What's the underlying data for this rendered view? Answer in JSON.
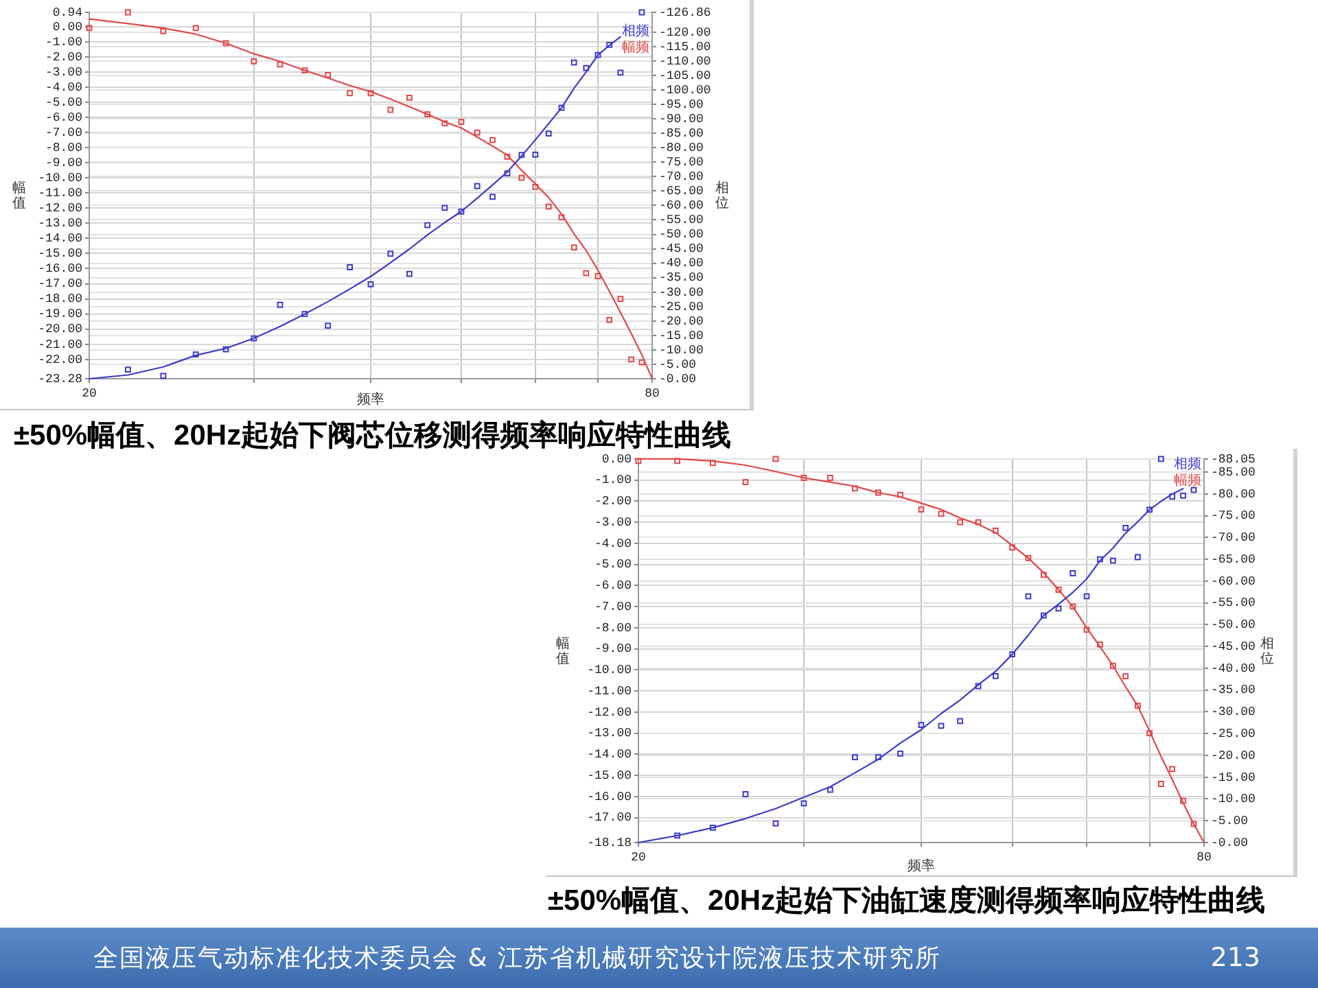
{
  "chart_data": [
    {
      "type": "scatter",
      "title": "±50%幅值、20Hz起始下阀芯位移测得频率响应特性曲线",
      "xlabel": "频率",
      "ylabel": "幅值",
      "y2label": "相位",
      "log": "x",
      "grid": true,
      "legend": "top right",
      "xlim": [
        20,
        80
      ],
      "xticks": [
        {
          "value": 20,
          "label": "20"
        },
        {
          "value": 30,
          "label": null
        },
        {
          "value": 40,
          "label": null
        },
        {
          "value": 50,
          "label": null
        },
        {
          "value": 60,
          "label": null
        },
        {
          "value": 70,
          "label": null
        },
        {
          "value": 80,
          "label": "80"
        }
      ],
      "ylim": [
        -23.28,
        0.94
      ],
      "yticks": [
        {
          "value": 0.94,
          "label": "0.94"
        },
        {
          "value": 0,
          "label": "0.00"
        },
        {
          "value": -1,
          "label": "-1.00"
        },
        {
          "value": -2,
          "label": "-2.00"
        },
        {
          "value": -3,
          "label": "-3.00"
        },
        {
          "value": -4,
          "label": "-4.00"
        },
        {
          "value": -5,
          "label": "-5.00"
        },
        {
          "value": -6,
          "label": "-6.00"
        },
        {
          "value": -7,
          "label": "-7.00"
        },
        {
          "value": -8,
          "label": "-8.00"
        },
        {
          "value": -9,
          "label": "-9.00"
        },
        {
          "value": -10,
          "label": "-10.00"
        },
        {
          "value": -11,
          "label": "-11.00"
        },
        {
          "value": -12,
          "label": "-12.00"
        },
        {
          "value": -13,
          "label": "-13.00"
        },
        {
          "value": -14,
          "label": "-14.00"
        },
        {
          "value": -15,
          "label": "-15.00"
        },
        {
          "value": -16,
          "label": "-16.00"
        },
        {
          "value": -17,
          "label": "-17.00"
        },
        {
          "value": -18,
          "label": "-18.00"
        },
        {
          "value": -19,
          "label": "-19.00"
        },
        {
          "value": -20,
          "label": "-20.00"
        },
        {
          "value": -21,
          "label": "-21.00"
        },
        {
          "value": -22,
          "label": "-22.00"
        },
        {
          "value": -23.28,
          "label": "-23.28"
        }
      ],
      "y2lim": [
        0,
        -126.86
      ],
      "y2ticks": [
        {
          "value": -126.86,
          "label": "-126.86"
        },
        {
          "value": -120,
          "label": "-120.00"
        },
        {
          "value": -115,
          "label": "-115.00"
        },
        {
          "value": -110,
          "label": "-110.00"
        },
        {
          "value": -105,
          "label": "-105.00"
        },
        {
          "value": -100,
          "label": "-100.00"
        },
        {
          "value": -95,
          "label": "-95.00"
        },
        {
          "value": -90,
          "label": "-90.00"
        },
        {
          "value": -85,
          "label": "-85.00"
        },
        {
          "value": -80,
          "label": "-80.00"
        },
        {
          "value": -75,
          "label": "-75.00"
        },
        {
          "value": -70,
          "label": "-70.00"
        },
        {
          "value": -65,
          "label": "-65.00"
        },
        {
          "value": -60,
          "label": "-60.00"
        },
        {
          "value": -55,
          "label": "-55.00"
        },
        {
          "value": -50,
          "label": "-50.00"
        },
        {
          "value": -45,
          "label": "-45.00"
        },
        {
          "value": -40,
          "label": "-40.00"
        },
        {
          "value": -35,
          "label": "-35.00"
        },
        {
          "value": -30,
          "label": "-30.00"
        },
        {
          "value": -25,
          "label": "-25.00"
        },
        {
          "value": -20,
          "label": "-20.00"
        },
        {
          "value": -15,
          "label": "-15.00"
        },
        {
          "value": -10,
          "label": "-10.00"
        },
        {
          "value": -5,
          "label": "-5.00"
        },
        {
          "value": 0,
          "label": "-0.00"
        }
      ],
      "series": [
        {
          "name": "相频",
          "type": "line",
          "axis": "y2",
          "color": "#3c3cc8",
          "x": [
            20,
            22,
            24,
            26,
            28,
            30,
            32,
            34,
            36,
            38,
            40,
            42,
            44,
            46,
            48,
            50,
            52,
            54,
            56,
            58,
            60,
            62,
            64,
            66,
            68,
            70,
            72,
            74
          ],
          "values": [
            0,
            -1.3,
            -4.1,
            -8.1,
            -10.5,
            -14.0,
            -18.1,
            -22.4,
            -26.7,
            -31.1,
            -35.4,
            -40.2,
            -44.9,
            -49.8,
            -54.1,
            -57.9,
            -62.5,
            -67.1,
            -71.6,
            -77.1,
            -82.7,
            -88.3,
            -93.8,
            -100.6,
            -106.2,
            -112.1,
            -115.4,
            -118.4
          ]
        },
        {
          "axis": "y2",
          "color": "#3c3cc8",
          "marker": "square",
          "x": [
            22,
            24,
            26,
            28,
            30,
            32,
            34,
            36,
            38,
            40,
            42,
            44,
            46,
            48,
            50,
            52,
            54,
            56,
            58,
            60,
            62,
            64,
            66,
            68,
            70,
            72,
            74,
            78
          ],
          "values": [
            -3.2,
            -1.0,
            -8.4,
            -10.2,
            -14.0,
            -25.6,
            -22.4,
            -18.4,
            -38.6,
            -32.7,
            -43.3,
            -36.3,
            -53.2,
            -59.2,
            -57.9,
            -66.7,
            -63.0,
            -71.1,
            -77.5,
            -77.6,
            -84.9,
            -93.8,
            -109.5,
            -107.6,
            -112.1,
            -115.6,
            -106.0,
            -126.86
          ]
        },
        {
          "name": "幅频",
          "type": "line",
          "color": "#e04848",
          "x": [
            20,
            22,
            24,
            26,
            28,
            30,
            32,
            34,
            36,
            38,
            40,
            42,
            44,
            46,
            48,
            50,
            52,
            54,
            56,
            58,
            60,
            62,
            64,
            66,
            68,
            70,
            72,
            74,
            76,
            78,
            80
          ],
          "values": [
            0.5,
            0.2,
            -0.1,
            -0.5,
            -1.1,
            -1.8,
            -2.3,
            -2.9,
            -3.4,
            -3.9,
            -4.3,
            -4.8,
            -5.3,
            -5.8,
            -6.3,
            -6.7,
            -7.3,
            -7.9,
            -8.5,
            -9.5,
            -10.4,
            -11.3,
            -12.4,
            -13.7,
            -14.8,
            -16.1,
            -17.5,
            -18.9,
            -20.3,
            -21.7,
            -23.28
          ]
        },
        {
          "color": "#e04848",
          "marker": "square",
          "x": [
            20,
            22,
            24,
            26,
            28,
            30,
            32,
            34,
            36,
            38,
            40,
            42,
            44,
            46,
            48,
            50,
            52,
            54,
            56,
            58,
            60,
            62,
            64,
            66,
            68,
            70,
            72,
            74,
            76,
            78
          ],
          "values": [
            -0.1,
            0.94,
            -0.3,
            -0.1,
            -1.1,
            -2.3,
            -2.5,
            -2.9,
            -3.2,
            -4.4,
            -4.4,
            -5.5,
            -4.7,
            -5.8,
            -6.4,
            -6.3,
            -7.0,
            -7.5,
            -8.6,
            -10.0,
            -10.6,
            -11.9,
            -12.6,
            -14.6,
            -16.3,
            -16.5,
            -19.4,
            -18.0,
            -22.0,
            -22.2
          ]
        }
      ]
    },
    {
      "type": "scatter",
      "title": "±50%幅值、20Hz起始下油缸速度测得频率响应特性曲线",
      "xlabel": "频率",
      "ylabel": "幅值",
      "y2label": "相位",
      "log": "x",
      "grid": true,
      "legend": "top right",
      "xlim": [
        20,
        80
      ],
      "xticks": [
        {
          "value": 20,
          "label": "20"
        },
        {
          "value": 30,
          "label": null
        },
        {
          "value": 40,
          "label": null
        },
        {
          "value": 50,
          "label": null
        },
        {
          "value": 60,
          "label": null
        },
        {
          "value": 70,
          "label": null
        },
        {
          "value": 80,
          "label": "80"
        }
      ],
      "ylim": [
        -18.18,
        0
      ],
      "yticks": [
        {
          "value": 0,
          "label": "0.00"
        },
        {
          "value": -1,
          "label": "-1.00"
        },
        {
          "value": -2,
          "label": "-2.00"
        },
        {
          "value": -3,
          "label": "-3.00"
        },
        {
          "value": -4,
          "label": "-4.00"
        },
        {
          "value": -5,
          "label": "-5.00"
        },
        {
          "value": -6,
          "label": "-6.00"
        },
        {
          "value": -7,
          "label": "-7.00"
        },
        {
          "value": -8,
          "label": "-8.00"
        },
        {
          "value": -9,
          "label": "-9.00"
        },
        {
          "value": -10,
          "label": "-10.00"
        },
        {
          "value": -11,
          "label": "-11.00"
        },
        {
          "value": -12,
          "label": "-12.00"
        },
        {
          "value": -13,
          "label": "-13.00"
        },
        {
          "value": -14,
          "label": "-14.00"
        },
        {
          "value": -15,
          "label": "-15.00"
        },
        {
          "value": -16,
          "label": "-16.00"
        },
        {
          "value": -17,
          "label": "-17.00"
        },
        {
          "value": -18.18,
          "label": "-18.18"
        }
      ],
      "y2lim": [
        0,
        -88.05
      ],
      "y2ticks": [
        {
          "value": -88.05,
          "label": "-88.05"
        },
        {
          "value": -85,
          "label": "-85.00"
        },
        {
          "value": -80,
          "label": "-80.00"
        },
        {
          "value": -75,
          "label": "-75.00"
        },
        {
          "value": -70,
          "label": "-70.00"
        },
        {
          "value": -65,
          "label": "-65.00"
        },
        {
          "value": -60,
          "label": "-60.00"
        },
        {
          "value": -55,
          "label": "-55.00"
        },
        {
          "value": -50,
          "label": "-50.00"
        },
        {
          "value": -45,
          "label": "-45.00"
        },
        {
          "value": -40,
          "label": "-40.00"
        },
        {
          "value": -35,
          "label": "-35.00"
        },
        {
          "value": -30,
          "label": "-30.00"
        },
        {
          "value": -25,
          "label": "-25.00"
        },
        {
          "value": -20,
          "label": "-20.00"
        },
        {
          "value": -15,
          "label": "-15.00"
        },
        {
          "value": -10,
          "label": "-10.00"
        },
        {
          "value": -5,
          "label": "-5.00"
        },
        {
          "value": 0,
          "label": "-0.00"
        }
      ],
      "annotations": [
        "全国液压气动标准化技术委员会 & 江苏省机械研究设计院液压技术研究所",
        "213"
      ],
      "series": [
        {
          "name": "相频",
          "type": "line",
          "axis": "y2",
          "color": "#3c3cc8",
          "x": [
            20,
            22,
            24,
            26,
            28,
            30,
            32,
            34,
            36,
            38,
            40,
            42,
            44,
            46,
            48,
            50,
            52,
            54,
            56,
            58,
            60,
            62,
            64,
            66,
            68,
            70,
            72,
            74,
            76
          ],
          "values": [
            0,
            -1.6,
            -3.4,
            -5.5,
            -7.8,
            -10.4,
            -12.8,
            -16.0,
            -19.1,
            -22.8,
            -25.9,
            -29.6,
            -32.7,
            -36.2,
            -39.3,
            -43.2,
            -47.6,
            -52.1,
            -54.7,
            -57.4,
            -60.5,
            -64.7,
            -67.6,
            -71.0,
            -73.6,
            -76.4,
            -78.3,
            -80.0,
            -81.2
          ]
        },
        {
          "axis": "y2",
          "color": "#3c3cc8",
          "marker": "square",
          "x": [
            22,
            24,
            26,
            28,
            30,
            32,
            34,
            36,
            38,
            40,
            42,
            44,
            46,
            48,
            50,
            52,
            54,
            56,
            58,
            60,
            62,
            64,
            66,
            68,
            70,
            72,
            74,
            76,
            78
          ],
          "values": [
            -1.6,
            -3.4,
            -11.1,
            -4.4,
            -9.0,
            -12.1,
            -19.6,
            -19.6,
            -20.4,
            -27.0,
            -26.8,
            -27.9,
            -35.9,
            -38.2,
            -43.2,
            -56.5,
            -52.1,
            -53.7,
            -61.8,
            -56.5,
            -65.0,
            -64.7,
            -72.2,
            -65.5,
            -76.4,
            -88.05,
            -79.4,
            -79.6,
            -80.9
          ]
        },
        {
          "name": "幅频",
          "type": "line",
          "color": "#e04848",
          "x": [
            20,
            22,
            24,
            26,
            28,
            30,
            32,
            34,
            36,
            38,
            40,
            42,
            44,
            46,
            48,
            50,
            52,
            54,
            56,
            58,
            60,
            62,
            64,
            66,
            68,
            70,
            72,
            74,
            76,
            78,
            80
          ],
          "values": [
            0,
            0.0,
            -0.1,
            -0.3,
            -0.6,
            -0.9,
            -1.1,
            -1.3,
            -1.6,
            -1.8,
            -2.1,
            -2.4,
            -2.8,
            -3.1,
            -3.5,
            -4.1,
            -4.7,
            -5.4,
            -6.2,
            -7.0,
            -8.0,
            -8.9,
            -9.8,
            -10.8,
            -11.7,
            -12.9,
            -14.1,
            -15.2,
            -16.3,
            -17.3,
            -18.18
          ]
        },
        {
          "color": "#e04848",
          "marker": "square",
          "x": [
            20,
            22,
            24,
            26,
            28,
            30,
            32,
            34,
            36,
            38,
            40,
            42,
            44,
            46,
            48,
            50,
            52,
            54,
            56,
            58,
            60,
            62,
            64,
            66,
            68,
            70,
            72,
            74,
            76,
            78
          ],
          "values": [
            -0.1,
            -0.1,
            -0.2,
            -1.1,
            0.0,
            -0.9,
            -0.9,
            -1.4,
            -1.6,
            -1.7,
            -2.4,
            -2.6,
            -3.0,
            -3.0,
            -3.4,
            -4.2,
            -4.7,
            -5.5,
            -6.2,
            -7.0,
            -8.1,
            -8.8,
            -9.8,
            -10.3,
            -11.7,
            -13.0,
            -15.4,
            -14.7,
            -16.2,
            -17.3
          ]
        }
      ]
    }
  ]
}
